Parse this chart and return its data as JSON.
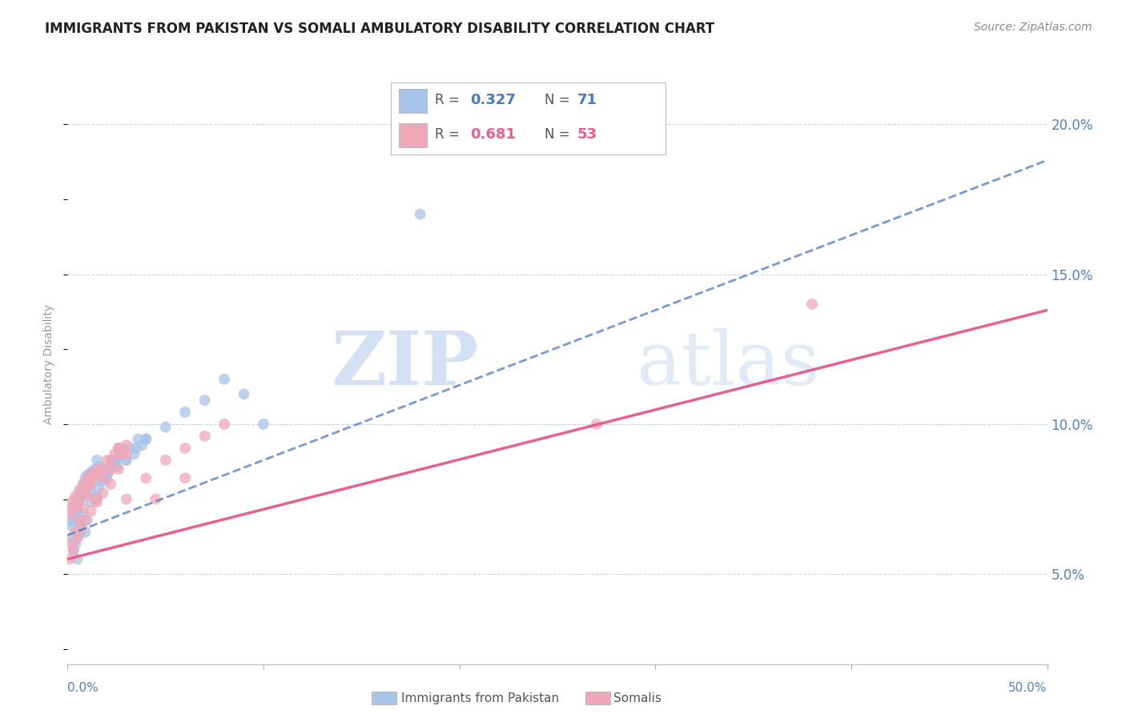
{
  "title": "IMMIGRANTS FROM PAKISTAN VS SOMALI AMBULATORY DISABILITY CORRELATION CHART",
  "source": "Source: ZipAtlas.com",
  "ylabel": "Ambulatory Disability",
  "xlim": [
    0.0,
    0.5
  ],
  "ylim": [
    0.02,
    0.22
  ],
  "yticks": [
    0.05,
    0.1,
    0.15,
    0.2
  ],
  "ytick_labels": [
    "5.0%",
    "10.0%",
    "15.0%",
    "20.0%"
  ],
  "pakistan_R": 0.327,
  "pakistan_N": 71,
  "somali_R": 0.681,
  "somali_N": 53,
  "pakistan_color": "#a8c4e8",
  "somali_color": "#f0a8b8",
  "pakistan_line_color": "#4878c8",
  "somali_line_color": "#e86090",
  "legend_label_pakistan": "Immigrants from Pakistan",
  "legend_label_somali": "Somalis",
  "watermark_zip": "ZIP",
  "watermark_atlas": "atlas",
  "background_color": "#ffffff",
  "grid_color": "#c8d4e8",
  "title_color": "#222222",
  "axis_label_color": "#5080c0",
  "pakistan_scatter_x": [
    0.001,
    0.002,
    0.002,
    0.003,
    0.003,
    0.004,
    0.004,
    0.005,
    0.005,
    0.006,
    0.006,
    0.007,
    0.007,
    0.008,
    0.008,
    0.009,
    0.009,
    0.01,
    0.01,
    0.011,
    0.011,
    0.012,
    0.012,
    0.013,
    0.014,
    0.015,
    0.015,
    0.016,
    0.016,
    0.017,
    0.018,
    0.019,
    0.02,
    0.021,
    0.022,
    0.023,
    0.024,
    0.025,
    0.026,
    0.027,
    0.028,
    0.03,
    0.032,
    0.034,
    0.036,
    0.038,
    0.04,
    0.002,
    0.003,
    0.004,
    0.005,
    0.006,
    0.007,
    0.008,
    0.009,
    0.01,
    0.012,
    0.014,
    0.016,
    0.02,
    0.025,
    0.03,
    0.035,
    0.04,
    0.05,
    0.06,
    0.07,
    0.08,
    0.09,
    0.1,
    0.18
  ],
  "pakistan_scatter_y": [
    0.068,
    0.072,
    0.066,
    0.07,
    0.069,
    0.075,
    0.068,
    0.071,
    0.073,
    0.075,
    0.074,
    0.078,
    0.076,
    0.08,
    0.077,
    0.079,
    0.082,
    0.079,
    0.083,
    0.08,
    0.082,
    0.077,
    0.084,
    0.083,
    0.085,
    0.076,
    0.088,
    0.081,
    0.086,
    0.085,
    0.081,
    0.083,
    0.085,
    0.084,
    0.086,
    0.088,
    0.087,
    0.088,
    0.089,
    0.09,
    0.092,
    0.088,
    0.092,
    0.09,
    0.095,
    0.093,
    0.095,
    0.062,
    0.058,
    0.06,
    0.055,
    0.063,
    0.066,
    0.07,
    0.064,
    0.068,
    0.074,
    0.075,
    0.079,
    0.082,
    0.086,
    0.088,
    0.092,
    0.095,
    0.099,
    0.104,
    0.108,
    0.115,
    0.11,
    0.1,
    0.17
  ],
  "somali_scatter_x": [
    0.001,
    0.002,
    0.003,
    0.004,
    0.005,
    0.006,
    0.007,
    0.008,
    0.009,
    0.01,
    0.011,
    0.012,
    0.013,
    0.015,
    0.016,
    0.018,
    0.02,
    0.022,
    0.024,
    0.026,
    0.028,
    0.03,
    0.002,
    0.004,
    0.006,
    0.008,
    0.01,
    0.012,
    0.015,
    0.018,
    0.022,
    0.026,
    0.001,
    0.003,
    0.005,
    0.007,
    0.009,
    0.012,
    0.015,
    0.018,
    0.022,
    0.026,
    0.03,
    0.03,
    0.04,
    0.05,
    0.06,
    0.06,
    0.07,
    0.08,
    0.27,
    0.38,
    0.045
  ],
  "somali_scatter_y": [
    0.07,
    0.074,
    0.072,
    0.076,
    0.073,
    0.078,
    0.076,
    0.08,
    0.078,
    0.082,
    0.08,
    0.082,
    0.084,
    0.083,
    0.085,
    0.085,
    0.088,
    0.088,
    0.09,
    0.092,
    0.09,
    0.093,
    0.06,
    0.064,
    0.068,
    0.072,
    0.076,
    0.08,
    0.075,
    0.082,
    0.085,
    0.092,
    0.055,
    0.058,
    0.062,
    0.065,
    0.068,
    0.071,
    0.074,
    0.077,
    0.08,
    0.085,
    0.09,
    0.075,
    0.082,
    0.088,
    0.092,
    0.082,
    0.096,
    0.1,
    0.1,
    0.14,
    0.075
  ],
  "pak_line_x0": 0.0,
  "pak_line_x1": 0.5,
  "pak_line_y0": 0.063,
  "pak_line_y1": 0.188,
  "som_line_x0": 0.0,
  "som_line_x1": 0.5,
  "som_line_y0": 0.055,
  "som_line_y1": 0.138
}
